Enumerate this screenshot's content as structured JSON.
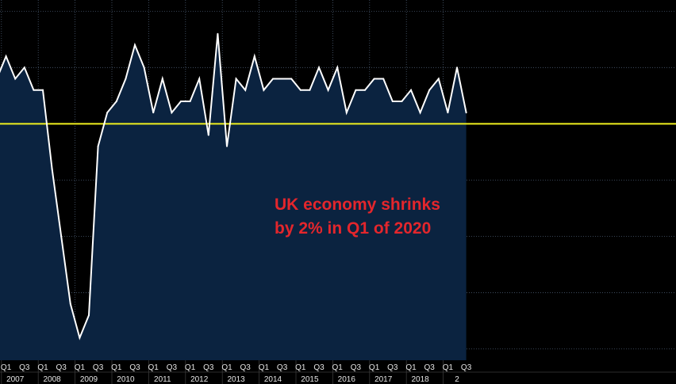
{
  "colors": {
    "background": "#000000",
    "area_fill": "#0b2340",
    "line": "#ffffff",
    "reference_line": "#f0f01e",
    "grid": "#4a5a70",
    "annotation": "#e4262c",
    "axis_text": "#e6e6e6"
  },
  "annotation": {
    "line1": "UK economy shrinks",
    "line2": "by 2% in Q1 of 2020"
  },
  "chart_data": {
    "type": "area",
    "title": "",
    "xlabel": "",
    "ylabel": "",
    "x_start": "2006 Q4",
    "x_end": "2019 Q2",
    "ylim": [
      -2.1,
      1.1
    ],
    "grid": true,
    "reference_line": {
      "y": 0
    },
    "quarter_labels": [
      "Q1",
      "Q3"
    ],
    "years": [
      "2007",
      "2008",
      "2009",
      "2010",
      "2011",
      "2012",
      "2013",
      "2014",
      "2015",
      "2016",
      "2017",
      "2018",
      "2"
    ],
    "values": [
      0.4,
      0.6,
      0.4,
      0.5,
      0.3,
      0.3,
      -0.4,
      -1.0,
      -1.6,
      -1.9,
      -1.7,
      -0.2,
      0.1,
      0.2,
      0.4,
      0.7,
      0.5,
      0.1,
      0.4,
      0.1,
      0.2,
      0.2,
      0.4,
      -0.1,
      0.8,
      -0.2,
      0.4,
      0.3,
      0.6,
      0.3,
      0.4,
      0.4,
      0.4,
      0.3,
      0.3,
      0.5,
      0.3,
      0.5,
      0.1,
      0.3,
      0.3,
      0.4,
      0.4,
      0.2,
      0.2,
      0.3,
      0.1,
      0.3,
      0.4,
      0.1,
      0.5,
      0.1
    ]
  }
}
